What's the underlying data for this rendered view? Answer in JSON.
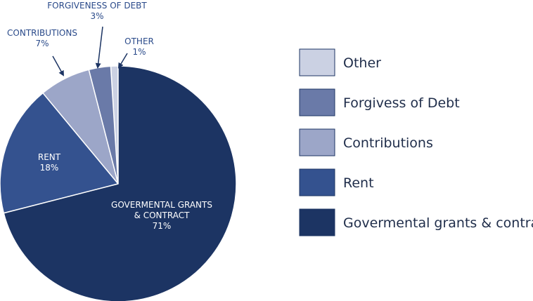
{
  "chart_data": {
    "type": "pie",
    "slices": [
      {
        "name": "Other",
        "value": 1,
        "color": "#cbd1e3",
        "callout_name": "OTHER",
        "callout_value": "1%"
      },
      {
        "name": "Forgivess of Debt",
        "value": 3,
        "color": "#6a7aa8",
        "callout_name": "FORGIVENESS OF DEBT",
        "callout_value": "3%"
      },
      {
        "name": "Contributions",
        "value": 7,
        "color": "#9ca6c8",
        "callout_name": "CONTRIBUTIONS",
        "callout_value": "7%"
      },
      {
        "name": "Rent",
        "value": 18,
        "color": "#34528f",
        "callout_name": "RENT",
        "callout_value": "18%"
      },
      {
        "name": "Govermental grants & contract",
        "value": 71,
        "color": "#1c3463",
        "callout_name": "GOVERMENTAL GRANTS\n& CONTRACT",
        "callout_value": "71%"
      }
    ],
    "legend_placement": "right",
    "legend_order": [
      "Other",
      "Forgivess of Debt",
      "Contributions",
      "Rent",
      "Govermental grants & contract"
    ],
    "label_color_dark": "#2a4a8a",
    "label_color_light": "#ffffff"
  }
}
